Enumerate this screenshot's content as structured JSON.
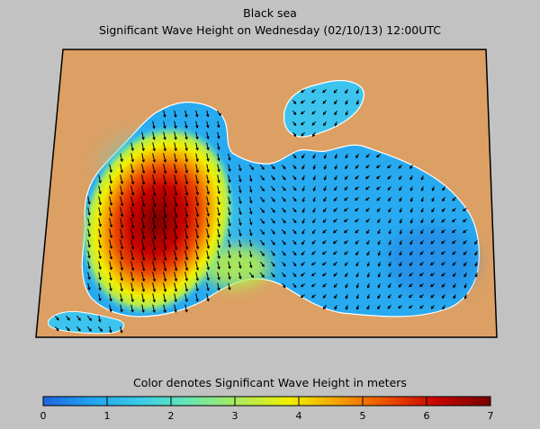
{
  "title": {
    "line1": "Black sea",
    "line2": "Significant Wave Height on Wednesday (02/10/13) 12:00UTC"
  },
  "colorbar": {
    "caption": "Color denotes Significant Wave Height in meters",
    "ticks": [
      "0",
      "1",
      "2",
      "3",
      "4",
      "5",
      "6",
      "7"
    ],
    "range": [
      0,
      7
    ],
    "colors": [
      "#1e64dc",
      "#1ea0f0",
      "#3ccde6",
      "#64e6b4",
      "#b4eb50",
      "#f0f000",
      "#f5a000",
      "#eb4600",
      "#c80000",
      "#780000"
    ]
  },
  "colors": {
    "background": "#c2c2c2",
    "land": "#dca064",
    "sea_calm": "#28aaf0",
    "sea_peak": "#8c0000",
    "arrows": "#000000"
  },
  "map": {
    "region": "Black Sea",
    "variable": "Significant Wave Height",
    "units": "meters",
    "peak_value_m": 7,
    "arrow_legend": "wave direction"
  }
}
